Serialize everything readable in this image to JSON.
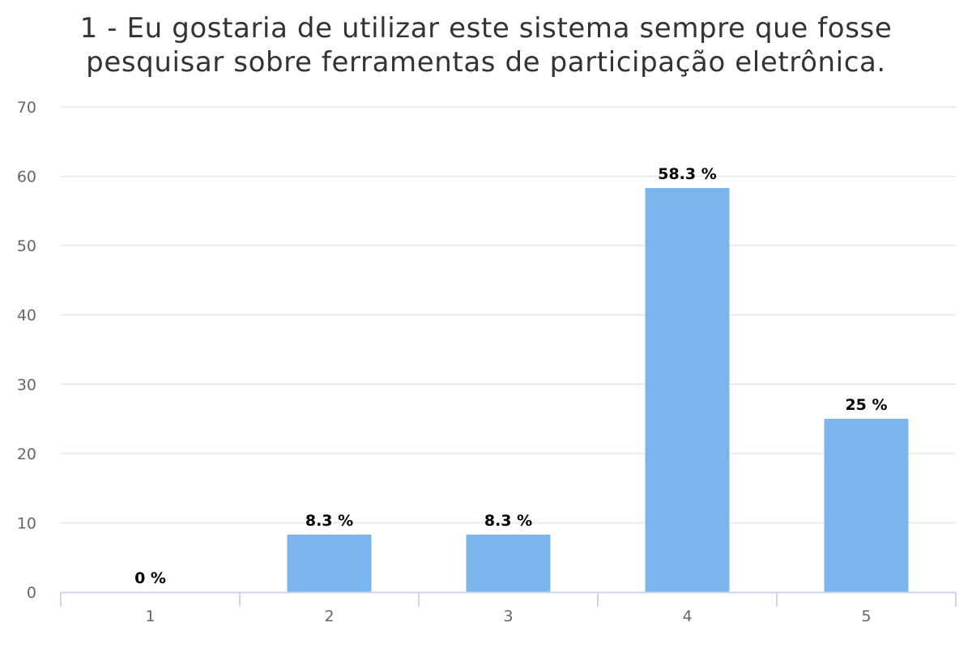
{
  "chart_data": {
    "type": "bar",
    "title_lines": [
      "1 - Eu gostaria de utilizar este sistema sempre que fosse",
      "pesquisar sobre ferramentas de participação eletrônica."
    ],
    "categories": [
      "1",
      "2",
      "3",
      "4",
      "5"
    ],
    "values": [
      0,
      8.3,
      8.3,
      58.3,
      25
    ],
    "data_labels": [
      "0 %",
      "8.3 %",
      "8.3 %",
      "58.3 %",
      "25 %"
    ],
    "xlabel": "",
    "ylabel": "",
    "ylim": [
      0,
      70
    ],
    "yticks": [
      0,
      10,
      20,
      30,
      40,
      50,
      60,
      70
    ],
    "grid": true,
    "legend": "none",
    "bar_color": "#7cb5ec",
    "grid_color": "#e6e6e6",
    "axis_color": "#ccd6eb"
  }
}
